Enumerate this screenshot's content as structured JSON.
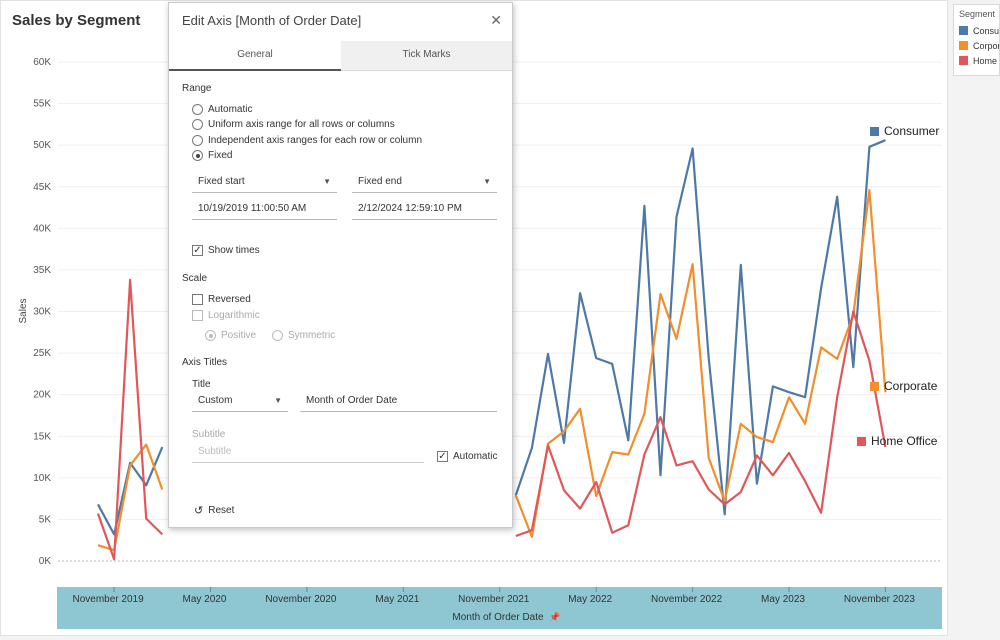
{
  "chart_title": "Sales by Segment",
  "legend": {
    "title": "Segment",
    "items": [
      {
        "label": "Consumer",
        "color": "#4e79a7"
      },
      {
        "label": "Corporate",
        "color": "#f28e2b"
      },
      {
        "label": "Home Office",
        "color": "#e15759"
      }
    ]
  },
  "end_labels": [
    "Consumer",
    "Corporate",
    "Home Office"
  ],
  "chart_data": {
    "type": "line",
    "xlabel": "Month of Order Date",
    "ylabel": "Sales",
    "ylim": [
      0,
      60000
    ],
    "yticks": [
      "0K",
      "5K",
      "10K",
      "15K",
      "20K",
      "25K",
      "30K",
      "35K",
      "40K",
      "45K",
      "50K",
      "55K",
      "60K"
    ],
    "xtick_labels": [
      "November 2019",
      "May 2020",
      "November 2020",
      "May 2021",
      "November 2021",
      "May 2022",
      "November 2022",
      "May 2023",
      "November 2023"
    ],
    "x": [
      "2019-10",
      "2019-11",
      "2019-12",
      "2020-01",
      "2020-02",
      "2020-03",
      "2020-04",
      "2020-05",
      "2020-06",
      "2020-07",
      "2020-08",
      "2020-09",
      "2020-10",
      "2020-11",
      "2020-12",
      "2021-01",
      "2021-02",
      "2021-03",
      "2021-04",
      "2021-05",
      "2021-06",
      "2021-07",
      "2021-08",
      "2021-09",
      "2021-10",
      "2021-11",
      "2021-12",
      "2022-01",
      "2022-02",
      "2022-03",
      "2022-04",
      "2022-05",
      "2022-06",
      "2022-07",
      "2022-08",
      "2022-09",
      "2022-10",
      "2022-11",
      "2022-12",
      "2023-01",
      "2023-02",
      "2023-03",
      "2023-04",
      "2023-05",
      "2023-06",
      "2023-07",
      "2023-08",
      "2023-09",
      "2023-10",
      "2023-11",
      "2023-12"
    ],
    "series": [
      {
        "name": "Consumer",
        "color": "#4e79a7",
        "values": [
          6800,
          3200,
          11800,
          9100,
          13700,
          null,
          null,
          null,
          null,
          null,
          null,
          null,
          null,
          null,
          null,
          null,
          null,
          null,
          null,
          null,
          null,
          null,
          null,
          null,
          null,
          null,
          7900,
          13600,
          24900,
          14200,
          32200,
          24400,
          23700,
          14500,
          42700,
          10300,
          41400,
          49600,
          24400,
          5600,
          35600,
          9300,
          21000,
          20300,
          19700,
          32800,
          43800,
          23300,
          49800,
          50600,
          null
        ]
      },
      {
        "name": "Corporate",
        "color": "#f28e2b",
        "values": [
          1900,
          1300,
          11500,
          14000,
          8600,
          null,
          null,
          null,
          null,
          null,
          null,
          null,
          null,
          null,
          null,
          null,
          null,
          null,
          null,
          null,
          null,
          null,
          null,
          null,
          null,
          null,
          7900,
          2900,
          14100,
          15600,
          18300,
          7800,
          13100,
          12800,
          17700,
          32100,
          26700,
          35700,
          12400,
          7200,
          16500,
          14900,
          14300,
          19700,
          16500,
          25700,
          24300,
          29600,
          44600,
          20300,
          null
        ]
      },
      {
        "name": "Home Office",
        "color": "#e15759",
        "values": [
          5700,
          200,
          33800,
          5100,
          3200,
          null,
          null,
          null,
          null,
          null,
          null,
          null,
          null,
          null,
          null,
          null,
          null,
          null,
          null,
          null,
          null,
          null,
          null,
          null,
          null,
          null,
          3000,
          3700,
          13900,
          8500,
          6300,
          9500,
          3400,
          4300,
          12800,
          17300,
          11500,
          12000,
          8600,
          6800,
          8300,
          12700,
          10300,
          13000,
          9600,
          5800,
          19700,
          30000,
          24100,
          13700,
          null
        ]
      }
    ]
  },
  "dialog": {
    "title": "Edit Axis [Month of Order Date]",
    "tabs": [
      "General",
      "Tick Marks"
    ],
    "range_label": "Range",
    "range_options": [
      "Automatic",
      "Uniform axis range for all rows or columns",
      "Independent axis ranges for each row or column",
      "Fixed"
    ],
    "fixed_start_label": "Fixed start",
    "fixed_end_label": "Fixed end",
    "fixed_start_value": "10/19/2019 11:00:50 AM",
    "fixed_end_value": "2/12/2024 12:59:10 PM",
    "show_times": "Show times",
    "scale_label": "Scale",
    "reversed": "Reversed",
    "logarithmic": "Logarithmic",
    "positive": "Positive",
    "symmetric": "Symmetric",
    "axis_titles_label": "Axis Titles",
    "title_label": "Title",
    "title_mode": "Custom",
    "title_value": "Month of Order Date",
    "subtitle_label": "Subtitle",
    "subtitle_placeholder": "Subtitle",
    "automatic": "Automatic",
    "reset": "Reset"
  }
}
